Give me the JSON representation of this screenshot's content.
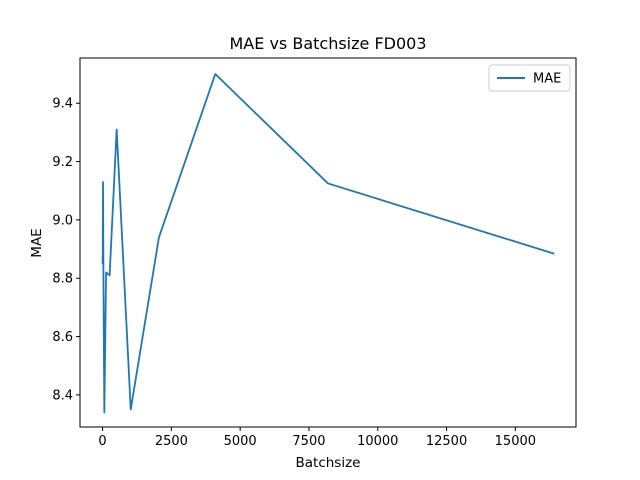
{
  "chart_data": {
    "type": "line",
    "title": "MAE vs Batchsize FD003",
    "xlabel": "Batchsize",
    "ylabel": "MAE",
    "xlim": [
      -820,
      17204
    ],
    "ylim": [
      8.29,
      9.555
    ],
    "xticks": [
      0,
      2500,
      5000,
      7500,
      10000,
      12500,
      15000
    ],
    "yticks": [
      8.4,
      8.6,
      8.8,
      9.0,
      9.2,
      9.4
    ],
    "grid": false,
    "legend": {
      "position": "top-right",
      "entries": [
        "MAE"
      ]
    },
    "series": [
      {
        "name": "MAE",
        "color": "#1f77b4",
        "x": [
          1,
          2,
          4,
          8,
          16,
          32,
          64,
          128,
          256,
          512,
          1024,
          2048,
          4096,
          8192,
          16384
        ],
        "y": [
          8.86,
          8.87,
          8.85,
          8.88,
          9.13,
          8.8,
          8.34,
          8.82,
          8.81,
          9.31,
          8.35,
          8.94,
          9.5,
          9.125,
          8.885
        ]
      }
    ]
  }
}
